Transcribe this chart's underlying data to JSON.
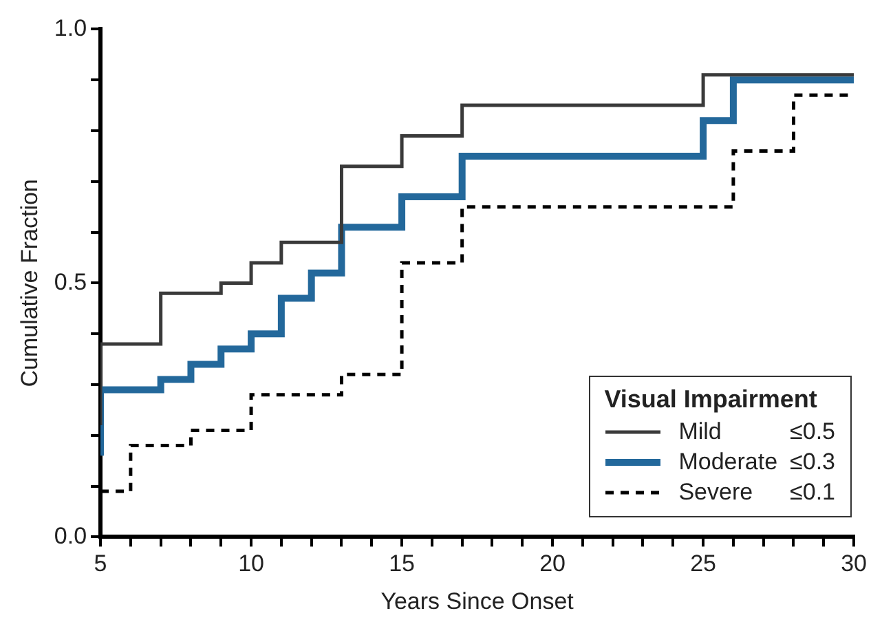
{
  "chart_data": {
    "type": "step",
    "xlabel": "Years Since Onset",
    "ylabel": "Cumulative Fraction",
    "legend_title": "Visual Impairment",
    "legend": "bottom right",
    "grid": false,
    "marker": "none",
    "xlim": [
      5,
      30
    ],
    "xticks": [
      5,
      {
        "value": 6,
        "label": null
      },
      {
        "value": 7,
        "label": null
      },
      {
        "value": 8,
        "label": null
      },
      {
        "value": 9,
        "label": null
      },
      10,
      {
        "value": 11,
        "label": null
      },
      {
        "value": 12,
        "label": null
      },
      {
        "value": 13,
        "label": null
      },
      {
        "value": 14,
        "label": null
      },
      15,
      {
        "value": 16,
        "label": null
      },
      {
        "value": 17,
        "label": null
      },
      {
        "value": 18,
        "label": null
      },
      {
        "value": 19,
        "label": null
      },
      20,
      {
        "value": 21,
        "label": null
      },
      {
        "value": 22,
        "label": null
      },
      {
        "value": 23,
        "label": null
      },
      {
        "value": 24,
        "label": null
      },
      25,
      {
        "value": 26,
        "label": null
      },
      {
        "value": 27,
        "label": null
      },
      {
        "value": 28,
        "label": null
      },
      {
        "value": 29,
        "label": null
      },
      30
    ],
    "ylim": [
      0,
      1
    ],
    "yticks": [
      {
        "value": 0,
        "label": "0.0"
      },
      {
        "value": 0.1,
        "label": null
      },
      {
        "value": 0.2,
        "label": null
      },
      {
        "value": 0.3,
        "label": null
      },
      {
        "value": 0.4,
        "label": null
      },
      0.5,
      {
        "value": 0.6,
        "label": null
      },
      {
        "value": 0.7,
        "label": null
      },
      {
        "value": 0.8,
        "label": null
      },
      {
        "value": 0.9,
        "label": null
      },
      {
        "value": 1,
        "label": "1.0"
      }
    ],
    "series": [
      {
        "name": "Mild ≤0.5",
        "color": "#3a3a3a",
        "line_style": "solid",
        "x": [
          5,
          5,
          7,
          9,
          10,
          11,
          13,
          15,
          17,
          25,
          30
        ],
        "values": [
          0.22,
          0.38,
          0.48,
          0.5,
          0.54,
          0.58,
          0.73,
          0.79,
          0.85,
          0.91,
          0.91
        ]
      },
      {
        "name": "Moderate ≤0.3",
        "color": "#23689b",
        "line_style": "solid",
        "x": [
          5,
          5,
          7,
          8,
          9,
          10,
          11,
          12,
          13,
          15,
          17,
          25,
          26,
          30
        ],
        "values": [
          0.16,
          0.29,
          0.31,
          0.34,
          0.37,
          0.4,
          0.47,
          0.52,
          0.61,
          0.67,
          0.75,
          0.82,
          0.9,
          0.9
        ]
      },
      {
        "name": "Severe ≤0.1",
        "color": "#000000",
        "line_style": "dashed",
        "x": [
          5,
          6,
          8,
          10,
          13,
          15,
          17,
          26,
          28,
          30
        ],
        "values": [
          0.09,
          0.18,
          0.21,
          0.28,
          0.32,
          0.54,
          0.65,
          0.76,
          0.87,
          0.87
        ]
      }
    ]
  }
}
